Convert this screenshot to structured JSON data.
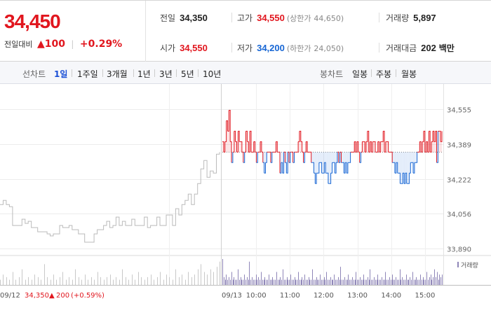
{
  "quote": {
    "price": "34,450",
    "change_label": "전일대비",
    "change_arrow": "▲",
    "change_value": "100",
    "change_pct": "+0.29%",
    "prev_close_label": "전일",
    "prev_close": "34,350",
    "high_label": "고가",
    "high": "34,550",
    "upper_limit_label": "(상한가",
    "upper_limit": "44,650)",
    "volume_label": "거래량",
    "volume": "5,897",
    "open_label": "시가",
    "open": "34,550",
    "low_label": "저가",
    "low": "34,200",
    "lower_limit_label": "(하한가",
    "lower_limit": "24,050)",
    "amount_label": "거래대금",
    "amount": "202",
    "amount_unit": "백만"
  },
  "toolbar": {
    "line_label": "선차트",
    "line_periods": [
      "1일",
      "1주일",
      "3개월",
      "1년",
      "3년",
      "5년",
      "10년"
    ],
    "active_period": "1일",
    "candle_label": "봉차트",
    "candle_periods": [
      "일봉",
      "주봉",
      "월봉"
    ]
  },
  "colors": {
    "up": "#e1161e",
    "down": "#1766d4",
    "prev_day": "#bbbbbb",
    "volume_prev": "#c8c8c8",
    "volume_today": "#8f86b8"
  },
  "chart_data": {
    "type": "line",
    "y_ticks": [
      "34,555",
      "34,389",
      "34,222",
      "34,056",
      "33,890"
    ],
    "ylim": [
      33890,
      34555
    ],
    "baseline_price": 34350,
    "prev_day_label": {
      "date": "09/12",
      "price": "34,350",
      "arrow": "▲",
      "change": "200",
      "pct": "(+0.59%)"
    },
    "today_date": "09/13",
    "x_ticks": [
      "10:00",
      "11:00",
      "12:00",
      "13:00",
      "14:00",
      "15:00"
    ],
    "x_tick_minutes": [
      60,
      120,
      180,
      240,
      300,
      360
    ],
    "session_minutes": 390,
    "volume_legend": "거래량",
    "prev_series": {
      "name": "09/12",
      "values": [
        34100,
        34120,
        34100,
        34090,
        34000,
        34000,
        34000,
        34030,
        34010,
        34020,
        33990,
        33990,
        33970,
        33970,
        33970,
        33960,
        33950,
        33960,
        33960,
        34000,
        33990,
        33990,
        34000,
        33980,
        33980,
        33960,
        33960,
        33920,
        33920,
        33920,
        33960,
        33980,
        33980,
        34000,
        34020,
        33990,
        34000,
        34040,
        34000,
        34020,
        34000,
        34000,
        34030,
        34000,
        34000,
        34000,
        34040,
        33990,
        34000,
        34000,
        34040,
        34000,
        34000,
        34050,
        34050,
        34000,
        34080,
        34050,
        34100,
        34120,
        34150,
        34100,
        34150,
        34200,
        34270,
        34310,
        34230,
        34260,
        34250,
        34340,
        34350
      ]
    },
    "today_series": {
      "name": "09/13",
      "values": [
        34400,
        34350,
        34400,
        34500,
        34450,
        34550,
        34400,
        34300,
        34350,
        34450,
        34400,
        34350,
        34450,
        34400,
        34400,
        34350,
        34300,
        34350,
        34450,
        34400,
        34350,
        34450,
        34350,
        34350,
        34400,
        34350,
        34300,
        34350,
        34350,
        34400,
        34350,
        34300,
        34250,
        34300,
        34350,
        34350,
        34350,
        34300,
        34350,
        34350,
        34350,
        34400,
        34350,
        34350,
        34250,
        34300,
        34250,
        34350,
        34300,
        34250,
        34350,
        34300,
        34350,
        34350,
        34300,
        34350,
        34350,
        34350,
        34400,
        34450,
        34400,
        34350,
        34300,
        34350,
        34400,
        34350,
        34350,
        34350,
        34300,
        34300,
        34250,
        34200,
        34250,
        34250,
        34300,
        34300,
        34250,
        34250,
        34300,
        34250,
        34250,
        34200,
        34200,
        34250,
        34300,
        34300,
        34250,
        34300,
        34350,
        34300,
        34350,
        34300,
        34300,
        34250,
        34300,
        34250,
        34300,
        34300,
        34350,
        34350,
        34350,
        34400,
        34350,
        34400,
        34350,
        34300,
        34350,
        34400,
        34400,
        34350,
        34400,
        34450,
        34350,
        34400,
        34350,
        34400,
        34400,
        34350,
        34350,
        34400,
        34350,
        34400,
        34400,
        34450,
        34350,
        34400,
        34400,
        34350,
        34350,
        34350,
        34300,
        34300,
        34250,
        34300,
        34250,
        34250,
        34200,
        34200,
        34250,
        34200,
        34250,
        34200,
        34200,
        34250,
        34300,
        34300,
        34250,
        34300,
        34300,
        34350,
        34350,
        34400,
        34350,
        34400,
        34450,
        34350,
        34400,
        34350,
        34450,
        34350,
        34400,
        34450,
        34400,
        34450,
        34300,
        34450,
        34450,
        34400,
        34450
      ]
    },
    "prev_volume": [
      2,
      4,
      3,
      2,
      5,
      2,
      3,
      6,
      2,
      3,
      2,
      4,
      3,
      2,
      8,
      3,
      2,
      4,
      2,
      3,
      5,
      2,
      3,
      2,
      6,
      3,
      2,
      4,
      2,
      3,
      2,
      5,
      3,
      2,
      3,
      4,
      2,
      3,
      2,
      6,
      3,
      2,
      4,
      2,
      5,
      3,
      2,
      3,
      4,
      2,
      3,
      5,
      2,
      4,
      3,
      2,
      6,
      3,
      4,
      2,
      5,
      3,
      4,
      6,
      8,
      5,
      4,
      6,
      5,
      7,
      9
    ],
    "today_volume": [
      10,
      3,
      2,
      4,
      2,
      3,
      2,
      5,
      2,
      3,
      2,
      2,
      6,
      2,
      3,
      2,
      2,
      4,
      2,
      3,
      2,
      9,
      2,
      3,
      2,
      2,
      4,
      2,
      3,
      2,
      5,
      2,
      2,
      3,
      2,
      2,
      4,
      2,
      2,
      3,
      2,
      2,
      5,
      2,
      2,
      3,
      2,
      6,
      2,
      2,
      3,
      2,
      2,
      4,
      2,
      2,
      3,
      2,
      2,
      5,
      2,
      2,
      3,
      2,
      4,
      2,
      2,
      3,
      2,
      2,
      6,
      2,
      2,
      3,
      2,
      2,
      4,
      2,
      2,
      3,
      2,
      5,
      2,
      2,
      3,
      2,
      2,
      4,
      2,
      2,
      3,
      2,
      7,
      2,
      2,
      3,
      2,
      2,
      4,
      2,
      2,
      3,
      2,
      2,
      5,
      2,
      2,
      3,
      2,
      2,
      4,
      2,
      2,
      3,
      2,
      6,
      2,
      2,
      3,
      2,
      2,
      4,
      2,
      2,
      3,
      2,
      2,
      5,
      2,
      2,
      3,
      2,
      4,
      2,
      2,
      3,
      2,
      2,
      6,
      2,
      3,
      2,
      2,
      4,
      2,
      2,
      3,
      2,
      5,
      2,
      2,
      3,
      2,
      2,
      4,
      2,
      3,
      2,
      2,
      5,
      2,
      3,
      4,
      2,
      3,
      6,
      3,
      5,
      2,
      4,
      3,
      4
    ]
  }
}
